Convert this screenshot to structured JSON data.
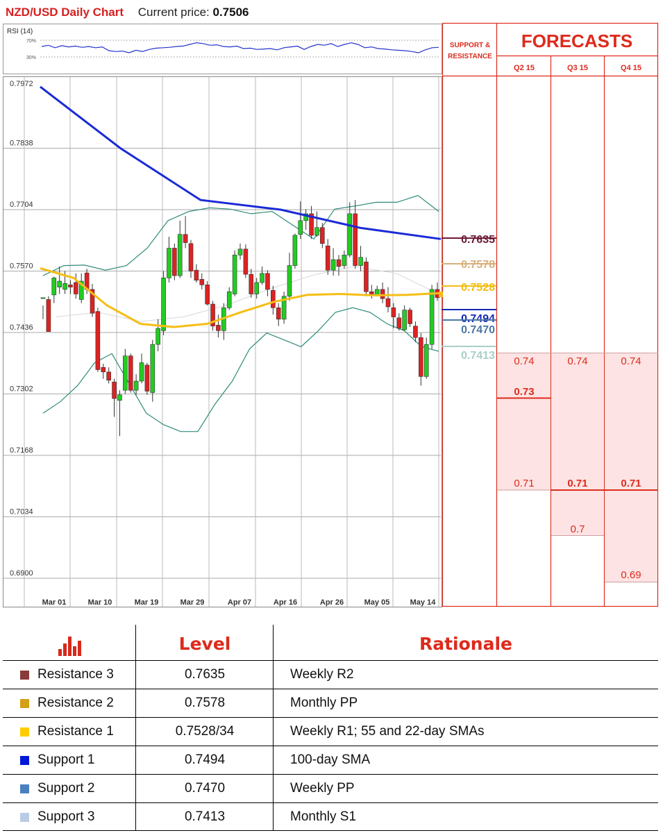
{
  "header": {
    "title": "NZD/USD Daily Chart",
    "current_price_label": "Current price:",
    "current_price": "0.7506"
  },
  "rsi": {
    "label": "RSI (14)",
    "level_high": "70%",
    "level_low": "30%",
    "values": [
      55,
      58,
      52,
      57,
      54,
      56,
      53,
      55,
      52,
      54,
      45,
      43,
      44,
      40,
      46,
      43,
      48,
      51,
      52,
      53,
      55,
      56,
      60,
      64,
      62,
      58,
      59,
      55,
      54,
      56,
      50,
      51,
      48,
      49,
      50,
      47,
      52,
      54,
      56,
      48,
      55,
      60,
      58,
      62,
      55,
      60,
      64,
      60,
      52,
      54,
      50,
      49,
      47,
      46,
      45,
      43,
      40,
      47,
      52,
      53
    ]
  },
  "chart_data": {
    "type": "candlestick",
    "title": "NZD/USD Daily Chart",
    "y_ticks": [
      "0.7972",
      "0.7838",
      "0.7704",
      "0.7570",
      "0.7436",
      "0.7302",
      "0.7168",
      "0.7034",
      "0.6900"
    ],
    "ylim": [
      0.69,
      0.7972
    ],
    "x_ticks": [
      "Mar 01",
      "Mar 10",
      "Mar 19",
      "Mar 29",
      "Apr 07",
      "Apr 16",
      "Apr 26",
      "May 05",
      "May 14"
    ],
    "candles": [
      [
        0.751,
        0.7512,
        0.7495,
        0.7465
      ],
      [
        0.7508,
        0.7438,
        0.7515,
        0.744
      ],
      [
        0.7518,
        0.7555,
        0.7558,
        0.75
      ],
      [
        0.7535,
        0.7548,
        0.758,
        0.752
      ],
      [
        0.753,
        0.7543,
        0.757,
        0.752
      ],
      [
        0.754,
        0.7535,
        0.755,
        0.752
      ],
      [
        0.7545,
        0.752,
        0.7565,
        0.751
      ],
      [
        0.7508,
        0.7548,
        0.7565,
        0.75
      ],
      [
        0.7566,
        0.753,
        0.7575,
        0.752
      ],
      [
        0.753,
        0.7478,
        0.7542,
        0.747
      ],
      [
        0.7482,
        0.7355,
        0.749,
        0.735
      ],
      [
        0.736,
        0.735,
        0.7368,
        0.7335
      ],
      [
        0.735,
        0.7332,
        0.736,
        0.7325
      ],
      [
        0.7328,
        0.7292,
        0.7335,
        0.7252
      ],
      [
        0.7288,
        0.73,
        0.731,
        0.721
      ],
      [
        0.731,
        0.7385,
        0.74,
        0.7302
      ],
      [
        0.7385,
        0.731,
        0.739,
        0.7305
      ],
      [
        0.731,
        0.733,
        0.7345,
        0.73
      ],
      [
        0.733,
        0.737,
        0.739,
        0.7325
      ],
      [
        0.7365,
        0.7308,
        0.737,
        0.73
      ],
      [
        0.7305,
        0.741,
        0.742,
        0.7285
      ],
      [
        0.741,
        0.7445,
        0.7465,
        0.7395
      ],
      [
        0.744,
        0.7555,
        0.757,
        0.743
      ],
      [
        0.7555,
        0.762,
        0.7645,
        0.7545
      ],
      [
        0.762,
        0.756,
        0.763,
        0.755
      ],
      [
        0.756,
        0.765,
        0.768,
        0.7555
      ],
      [
        0.765,
        0.7632,
        0.769,
        0.762
      ],
      [
        0.763,
        0.757,
        0.7638,
        0.7555
      ],
      [
        0.7572,
        0.755,
        0.7585,
        0.7545
      ],
      [
        0.7552,
        0.754,
        0.7565,
        0.753
      ],
      [
        0.754,
        0.7498,
        0.7548,
        0.7495
      ],
      [
        0.7498,
        0.745,
        0.7505,
        0.744
      ],
      [
        0.7452,
        0.744,
        0.7475,
        0.7425
      ],
      [
        0.744,
        0.749,
        0.75,
        0.742
      ],
      [
        0.749,
        0.7525,
        0.7535,
        0.7485
      ],
      [
        0.752,
        0.7605,
        0.7615,
        0.7515
      ],
      [
        0.7605,
        0.7618,
        0.763,
        0.7595
      ],
      [
        0.7618,
        0.7563,
        0.7628,
        0.7555
      ],
      [
        0.7563,
        0.752,
        0.7575,
        0.7512
      ],
      [
        0.752,
        0.7545,
        0.7555,
        0.751
      ],
      [
        0.7545,
        0.7565,
        0.758,
        0.754
      ],
      [
        0.7565,
        0.753,
        0.7572,
        0.7515
      ],
      [
        0.7528,
        0.749,
        0.7538,
        0.7475
      ],
      [
        0.749,
        0.7465,
        0.75,
        0.745
      ],
      [
        0.7465,
        0.7515,
        0.7525,
        0.7455
      ],
      [
        0.7515,
        0.7582,
        0.761,
        0.7505
      ],
      [
        0.7582,
        0.7648,
        0.7652,
        0.7575
      ],
      [
        0.765,
        0.768,
        0.7722,
        0.764
      ],
      [
        0.768,
        0.7695,
        0.7705,
        0.766
      ],
      [
        0.7695,
        0.7648,
        0.7712,
        0.764
      ],
      [
        0.7648,
        0.7665,
        0.77,
        0.7645
      ],
      [
        0.7665,
        0.763,
        0.7675,
        0.762
      ],
      [
        0.7625,
        0.7572,
        0.764,
        0.7562
      ],
      [
        0.7572,
        0.7595,
        0.762,
        0.756
      ],
      [
        0.7595,
        0.758,
        0.7605,
        0.756
      ],
      [
        0.7582,
        0.7605,
        0.7615,
        0.7575
      ],
      [
        0.7605,
        0.7695,
        0.772,
        0.76
      ],
      [
        0.7695,
        0.7582,
        0.7725,
        0.7575
      ],
      [
        0.7582,
        0.76,
        0.7625,
        0.757
      ],
      [
        0.759,
        0.7525,
        0.76,
        0.7515
      ],
      [
        0.7525,
        0.752,
        0.754,
        0.751
      ],
      [
        0.7518,
        0.753,
        0.7538,
        0.7515
      ],
      [
        0.753,
        0.751,
        0.7545,
        0.75
      ],
      [
        0.751,
        0.7492,
        0.7535,
        0.748
      ],
      [
        0.749,
        0.747,
        0.75,
        0.7445
      ],
      [
        0.7468,
        0.7445,
        0.7478,
        0.744
      ],
      [
        0.7442,
        0.7485,
        0.7495,
        0.744
      ],
      [
        0.7485,
        0.7455,
        0.749,
        0.7448
      ],
      [
        0.745,
        0.7425,
        0.746,
        0.7415
      ],
      [
        0.7425,
        0.734,
        0.7435,
        0.732
      ],
      [
        0.734,
        0.741,
        0.7425,
        0.7335
      ],
      [
        0.741,
        0.753,
        0.754,
        0.74
      ],
      [
        0.753,
        0.7512,
        0.7545,
        0.7505
      ]
    ],
    "sma200": [
      0.7972,
      0.7838,
      0.7725,
      0.7704,
      0.7664,
      0.764
    ],
    "sma55": [
      0.7576,
      0.7555,
      0.7495,
      0.7455,
      0.7448,
      0.7455,
      0.748,
      0.7503,
      0.7518,
      0.752,
      0.7517,
      0.7518,
      0.7522
    ],
    "sma22": [
      0.747,
      0.748,
      0.746,
      0.747,
      0.7495,
      0.753,
      0.756,
      0.758,
      0.7565,
      0.752
    ],
    "bb_upper": [
      0.756,
      0.7582,
      0.7583,
      0.7572,
      0.7582,
      0.762,
      0.768,
      0.77,
      0.7708,
      0.7705,
      0.7695,
      0.77,
      0.767,
      0.764,
      0.7705,
      0.7712,
      0.772,
      0.772,
      0.7735,
      0.77
    ],
    "bb_lower": [
      0.726,
      0.7285,
      0.732,
      0.737,
      0.739,
      0.7325,
      0.726,
      0.7235,
      0.722,
      0.722,
      0.728,
      0.733,
      0.74,
      0.7435,
      0.742,
      0.7405,
      0.744,
      0.748,
      0.749,
      0.748,
      0.7455,
      0.744,
      0.7405,
      0.7395
    ],
    "levels": [
      {
        "value": "0.7635",
        "color": "#6e1c36"
      },
      {
        "value": "0.7578",
        "color": "#d9b07a"
      },
      {
        "value": "0.7528",
        "color": "#f2bd12"
      },
      {
        "value": "0.7494",
        "color": "#1428b4"
      },
      {
        "value": "0.7470",
        "color": "#4b78a6"
      },
      {
        "value": "0.7413",
        "color": "#a9cfc8"
      }
    ]
  },
  "support_resistance_label": "SUPPORT & RESISTANCE",
  "forecasts": {
    "title": "FORECASTS",
    "columns": [
      {
        "label": "Q2 15",
        "high": "0.74",
        "mid": "0.73",
        "low": "0.71",
        "ext": ""
      },
      {
        "label": "Q3 15",
        "high": "0.74",
        "mid": "",
        "low": "0.71",
        "ext": "0.7"
      },
      {
        "label": "Q4 15",
        "high": "0.74",
        "mid": "",
        "low": "0.71",
        "ext": "0.69"
      }
    ]
  },
  "table": {
    "headers": {
      "level": "Level",
      "rationale": "Rationale"
    },
    "rows": [
      {
        "name": "Resistance 3",
        "level": "0.7635",
        "rationale": "Weekly R2",
        "color": "#8b3a3a"
      },
      {
        "name": "Resistance 2",
        "level": "0.7578",
        "rationale": "Monthly PP",
        "color": "#d4a017"
      },
      {
        "name": "Resistance 1",
        "level": "0.7528/34",
        "rationale": "Weekly R1; 55 and 22-day SMAs",
        "color": "#ffcc00"
      },
      {
        "name": "Support 1",
        "level": "0.7494",
        "rationale": "100-day SMA",
        "color": "#0018d8"
      },
      {
        "name": "Support 2",
        "level": "0.7470",
        "rationale": "Weekly PP",
        "color": "#4a80c0"
      },
      {
        "name": "Support 3",
        "level": "0.7413",
        "rationale": "Monthly S1",
        "color": "#b8cce4"
      }
    ]
  },
  "colors": {
    "accent_red": "#dd2a1c",
    "bull": "#22cc22",
    "bear": "#dd2222",
    "sma200": "#1a2ad6",
    "sma55": "#f5be14",
    "bollinger": "#2e8b7a"
  }
}
